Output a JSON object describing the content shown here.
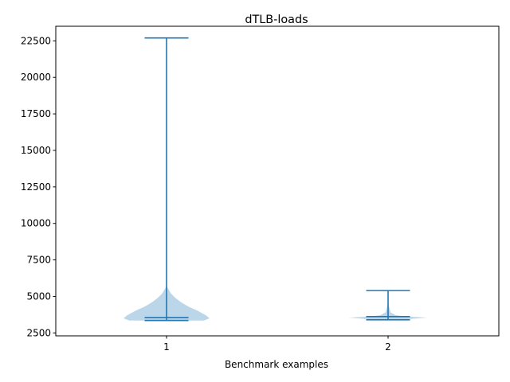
{
  "chart_data": {
    "type": "violin",
    "title": "dTLB-loads",
    "xlabel": "Benchmark examples",
    "ylabel": "",
    "ylim": [
      2300,
      23500
    ],
    "yticks": [
      2500,
      5000,
      7500,
      10000,
      12500,
      15000,
      17500,
      20000,
      22500
    ],
    "ytick_labels": [
      "2500",
      "5000",
      "7500",
      "10000",
      "12500",
      "15000",
      "17500",
      "20000",
      "22500"
    ],
    "xlim": [
      0.5,
      2.5
    ],
    "categories": [
      "1",
      "2"
    ],
    "grid": false,
    "colors": {
      "body": "#1f77b4",
      "body_opacity": 0.3,
      "line": "#1f77b4"
    },
    "series": [
      {
        "position": 1,
        "min": 3350,
        "max": 22700,
        "mean": 3550,
        "median": 3400,
        "density": [
          [
            3350,
            0.85
          ],
          [
            3500,
            0.98
          ],
          [
            3700,
            0.9
          ],
          [
            4000,
            0.72
          ],
          [
            4300,
            0.5
          ],
          [
            4600,
            0.33
          ],
          [
            4900,
            0.2
          ],
          [
            5200,
            0.1
          ],
          [
            5500,
            0.04
          ],
          [
            5700,
            0.005
          ]
        ]
      },
      {
        "position": 2,
        "min": 3400,
        "max": 5400,
        "mean": 3620,
        "median": 3450,
        "density": [
          [
            3400,
            0.25
          ],
          [
            3500,
            0.7
          ],
          [
            3550,
            0.9
          ],
          [
            3600,
            0.55
          ],
          [
            3700,
            0.18
          ],
          [
            3900,
            0.06
          ],
          [
            4200,
            0.03
          ],
          [
            4400,
            0.015
          ],
          [
            4600,
            0.005
          ],
          [
            5400,
            0.0
          ]
        ]
      }
    ]
  }
}
